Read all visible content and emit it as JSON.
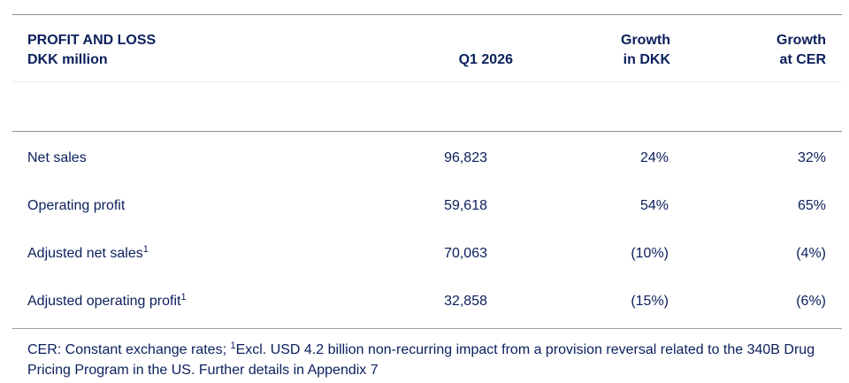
{
  "header": {
    "title_line1": "PROFIT AND LOSS",
    "title_line2": "DKK million",
    "col_period": "Q1 2026",
    "col_growth_dkk_line1": "Growth",
    "col_growth_dkk_line2": "in DKK",
    "col_growth_cer_line1": "Growth",
    "col_growth_cer_line2": "at CER"
  },
  "rows": [
    {
      "label": "Net sales",
      "footnote_mark": "",
      "value": "96,823",
      "growth_dkk": "24%",
      "growth_cer": "32%"
    },
    {
      "label": "Operating profit",
      "footnote_mark": "",
      "value": "59,618",
      "growth_dkk": "54%",
      "growth_cer": "65%"
    },
    {
      "label": "Adjusted net sales",
      "footnote_mark": "1",
      "value": "70,063",
      "growth_dkk": "(10%)",
      "growth_cer": "(4%)"
    },
    {
      "label": "Adjusted operating profit",
      "footnote_mark": "1",
      "value": "32,858",
      "growth_dkk": "(15%)",
      "growth_cer": "(6%)"
    }
  ],
  "footnote": {
    "part1": "CER: Constant exchange rates; ",
    "mark": "1",
    "part2": "Excl. USD 4.2 billion non-recurring impact from a provision reversal related to the 340B Drug Pricing Program in the US. Further details in Appendix 7"
  },
  "colors": {
    "text": "#0b1f5c",
    "rule": "#8a8f9c"
  }
}
